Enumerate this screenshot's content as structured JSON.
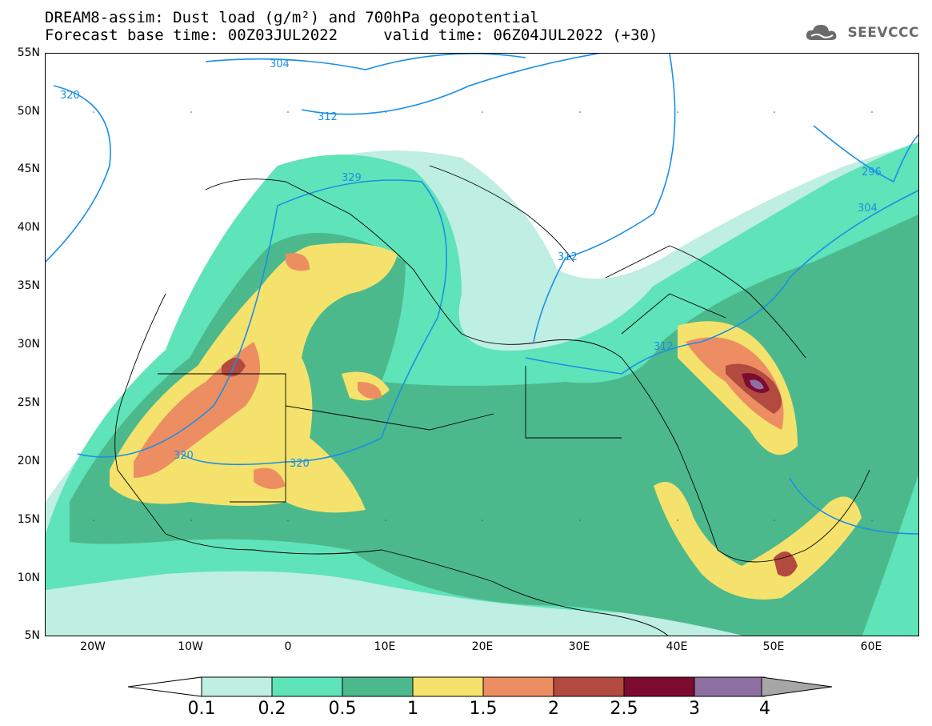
{
  "header": {
    "title_line1": "DREAM8-assim: Dust load (g/m²) and 700hPa geopotential",
    "title_line2": "Forecast base time: 00Z03JUL2022     valid time: 06Z04JUL2022 (+30)"
  },
  "logo": {
    "text": "SEEVCCC",
    "icon": "cloud-icon"
  },
  "axes": {
    "lat_labels": [
      "55N",
      "50N",
      "45N",
      "40N",
      "35N",
      "30N",
      "25N",
      "20N",
      "15N",
      "10N",
      "5N"
    ],
    "lon_labels": [
      "20W",
      "10W",
      "0",
      "10E",
      "20E",
      "30E",
      "40E",
      "50E",
      "60E"
    ]
  },
  "contours": {
    "labels": [
      "304",
      "312",
      "320",
      "329",
      "312",
      "312",
      "320",
      "320",
      "296",
      "304"
    ]
  },
  "colorbar": {
    "ticks": [
      "0.1",
      "0.2",
      "0.5",
      "1",
      "1.5",
      "2",
      "2.5",
      "3",
      "4"
    ],
    "colors": [
      "#bfeee3",
      "#5fe3b8",
      "#4cb98d",
      "#f5e26d",
      "#ec8e62",
      "#b24a3f",
      "#7d0b2f",
      "#8e6fa1"
    ],
    "over_color": "#a6a6a6",
    "under_color": "#ffffff"
  },
  "chart_data": {
    "type": "heatmap",
    "variable": "Dust load (g/m²)",
    "overlay": "700hPa geopotential",
    "lon_range": [
      -25,
      65
    ],
    "lat_range": [
      5,
      55
    ],
    "levels": [
      0.1,
      0.2,
      0.5,
      1,
      1.5,
      2,
      2.5,
      3,
      4
    ],
    "geopotential_contours": [
      {
        "label": "304",
        "lon": -2,
        "lat": 54
      },
      {
        "label": "312",
        "lon": 2,
        "lat": 49
      },
      {
        "label": "320",
        "lon": -22,
        "lat": 51
      },
      {
        "label": "329",
        "lon": 6,
        "lat": 44
      },
      {
        "label": "312",
        "lon": 29,
        "lat": 36
      },
      {
        "label": "312",
        "lon": 43,
        "lat": 30
      },
      {
        "label": "320",
        "lon": -10.5,
        "lat": 20.3
      },
      {
        "label": "320",
        "lon": 0.5,
        "lat": 19.9
      },
      {
        "label": "296",
        "lon": 58,
        "lat": 45
      },
      {
        "label": "304",
        "lon": 58.5,
        "lat": 41.7
      }
    ]
  }
}
